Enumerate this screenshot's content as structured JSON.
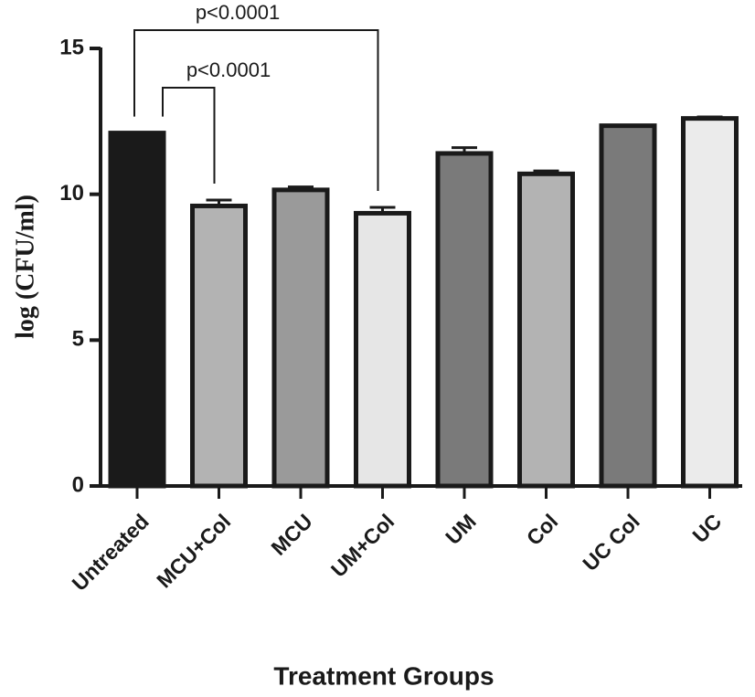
{
  "chart_data": {
    "type": "bar",
    "x_label": "Treatment Groups",
    "y_label": "log (CFU/ml)",
    "categories": [
      "Untreated",
      "MCU+Col",
      "MCU",
      "UM+Col",
      "UM",
      "Col",
      "UC Col",
      "UC"
    ],
    "values": [
      12.1,
      9.6,
      10.15,
      9.35,
      11.4,
      10.7,
      12.35,
      12.6
    ],
    "errors": [
      0,
      0.2,
      0.1,
      0.2,
      0.2,
      0.1,
      0,
      0.05
    ],
    "colors": [
      "#1a1a1a",
      "#b3b3b3",
      "#9a9a9a",
      "#e6e6e6",
      "#7a7a7a",
      "#b3b3b3",
      "#7a7a7a",
      "#ebebeb"
    ],
    "ylim": [
      0,
      15
    ],
    "yticks": [
      0,
      5,
      10,
      15
    ],
    "annotations": [
      {
        "text": "p<0.0001",
        "from": "Untreated",
        "to": "UM+Col"
      },
      {
        "text": "p<0.0001",
        "from": "Untreated",
        "to": "MCU+Col"
      }
    ]
  }
}
